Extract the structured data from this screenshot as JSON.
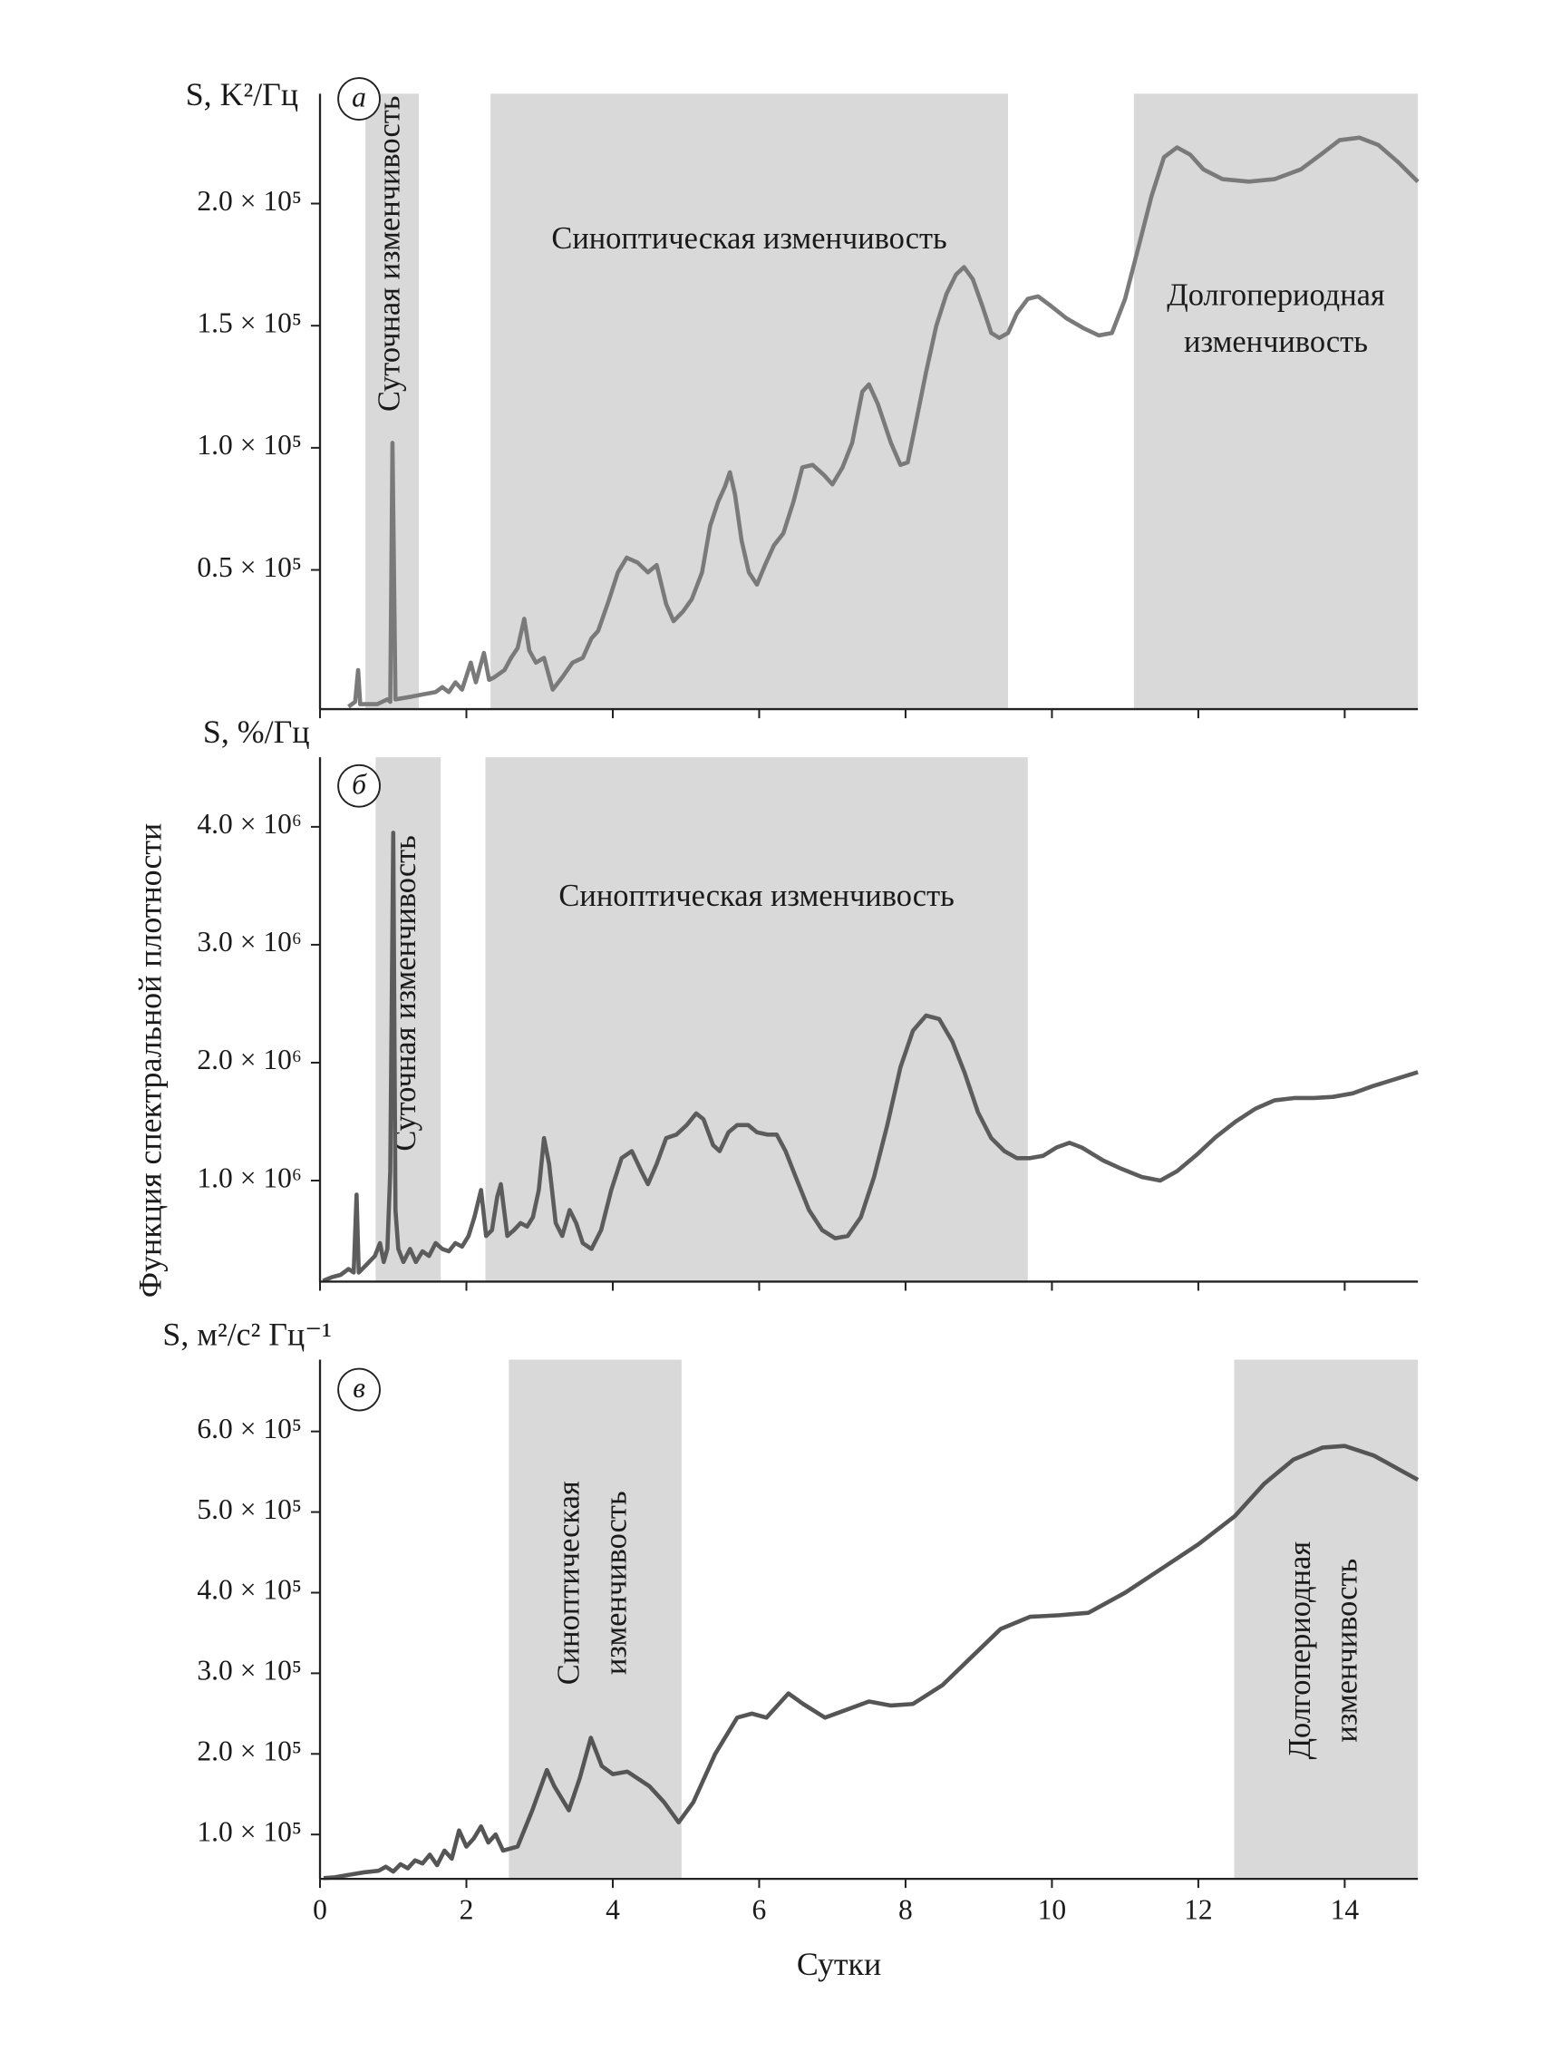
{
  "chart_data": [
    {
      "type": "line",
      "unit_label": "S, K²/Гц",
      "panel_label": "а",
      "color": "#7a7a7a",
      "band_color": "#d9d9d9",
      "xlim": [
        0,
        15
      ],
      "ylim": [
        -7000,
        245000
      ],
      "yticks": [
        {
          "value": 50000,
          "label": "0.5 × 10⁵"
        },
        {
          "value": 100000,
          "label": "1.0 × 10⁵"
        },
        {
          "value": 150000,
          "label": "1.5 × 10⁵"
        },
        {
          "value": 200000,
          "label": "2.0 × 10⁵"
        }
      ],
      "bands": [
        {
          "x0": 0.62,
          "x1": 1.35,
          "label": [
            "Суточная изменчивость"
          ],
          "vertical": true
        },
        {
          "x0": 2.33,
          "x1": 9.4,
          "label": [
            "Синоптическая изменчивость"
          ],
          "vertical": false
        },
        {
          "x0": 11.12,
          "x1": 15,
          "label": [
            "Долгопериодная",
            "изменчивость"
          ],
          "vertical": false
        }
      ],
      "x": [
        0.39,
        0.48,
        0.52,
        0.55,
        0.78,
        0.92,
        0.96,
        0.99,
        1.03,
        1.23,
        1.4,
        1.58,
        1.67,
        1.76,
        1.85,
        1.94,
        2.06,
        2.13,
        2.24,
        2.31,
        2.38,
        2.52,
        2.61,
        2.7,
        2.79,
        2.86,
        2.95,
        3.06,
        3.18,
        3.31,
        3.45,
        3.59,
        3.71,
        3.8,
        3.94,
        4.07,
        4.19,
        4.34,
        4.48,
        4.6,
        4.73,
        4.83,
        4.96,
        5.08,
        5.22,
        5.33,
        5.44,
        5.53,
        5.6,
        5.67,
        5.76,
        5.86,
        5.97,
        6.08,
        6.2,
        6.33,
        6.47,
        6.59,
        6.73,
        6.88,
        7.0,
        7.14,
        7.27,
        7.41,
        7.5,
        7.62,
        7.8,
        7.93,
        8.03,
        8.16,
        8.28,
        8.42,
        8.56,
        8.69,
        8.8,
        8.92,
        9.05,
        9.17,
        9.28,
        9.4,
        9.52,
        9.67,
        9.81,
        9.99,
        10.2,
        10.43,
        10.64,
        10.82,
        11.0,
        11.18,
        11.36,
        11.53,
        11.71,
        11.89,
        12.07,
        12.33,
        12.69,
        13.04,
        13.4,
        13.67,
        13.93,
        14.2,
        14.46,
        14.73,
        15.0
      ],
      "values": [
        -6000,
        -4000,
        9000,
        -5000,
        -5000,
        -3000,
        -4000,
        102000,
        -3000,
        -2000,
        -1000,
        0,
        2000,
        0,
        4000,
        1000,
        12000,
        4000,
        16000,
        5000,
        6000,
        9000,
        14000,
        18000,
        30000,
        17000,
        12000,
        14000,
        1000,
        6000,
        12000,
        14000,
        22000,
        25000,
        37000,
        49000,
        55000,
        53000,
        49000,
        52000,
        36000,
        29000,
        33000,
        38000,
        49000,
        68000,
        78000,
        84000,
        90000,
        81000,
        62000,
        49000,
        44000,
        52000,
        60000,
        65000,
        78000,
        92000,
        93000,
        89000,
        85000,
        92000,
        102000,
        123000,
        126000,
        118000,
        102000,
        93000,
        94000,
        113000,
        131000,
        150000,
        163000,
        171000,
        174000,
        169000,
        158000,
        147000,
        145000,
        147000,
        155000,
        161000,
        162000,
        158000,
        153000,
        149000,
        146000,
        147000,
        161000,
        182000,
        203000,
        219000,
        223000,
        220000,
        214000,
        210000,
        209000,
        210000,
        214000,
        220000,
        226000,
        227000,
        224000,
        217000,
        209000
      ]
    },
    {
      "type": "line",
      "unit_label": "S, %/Гц",
      "panel_label": "б",
      "ylabel": "Функция спектральной плотности",
      "color": "#5c5c5c",
      "band_color": "#d9d9d9",
      "xlim": [
        0,
        15
      ],
      "ylim": [
        143000,
        4590000
      ],
      "yticks": [
        {
          "value": 1000000,
          "label": "1.0 × 10⁶"
        },
        {
          "value": 2000000,
          "label": "2.0 × 10⁶"
        },
        {
          "value": 3000000,
          "label": "3.0 × 10⁶"
        },
        {
          "value": 4000000,
          "label": "4.0 × 10⁶"
        }
      ],
      "bands": [
        {
          "x0": 0.76,
          "x1": 1.65,
          "label": [
            "Суточная изменчивость"
          ],
          "vertical": true
        },
        {
          "x0": 2.26,
          "x1": 9.67,
          "label": [
            "Синоптическая изменчивость"
          ],
          "vertical": false
        }
      ],
      "x": [
        0.04,
        0.16,
        0.28,
        0.39,
        0.46,
        0.5,
        0.53,
        0.64,
        0.75,
        0.82,
        0.87,
        0.92,
        0.96,
        1.0,
        1.03,
        1.07,
        1.14,
        1.23,
        1.31,
        1.4,
        1.49,
        1.58,
        1.67,
        1.76,
        1.85,
        1.94,
        2.03,
        2.11,
        2.2,
        2.27,
        2.35,
        2.42,
        2.47,
        2.56,
        2.65,
        2.74,
        2.83,
        2.91,
        2.99,
        3.06,
        3.13,
        3.22,
        3.31,
        3.41,
        3.5,
        3.59,
        3.71,
        3.84,
        3.98,
        4.12,
        4.26,
        4.39,
        4.48,
        4.6,
        4.73,
        4.87,
        5.01,
        5.14,
        5.24,
        5.37,
        5.46,
        5.58,
        5.7,
        5.85,
        5.97,
        6.11,
        6.24,
        6.36,
        6.5,
        6.68,
        6.86,
        7.04,
        7.21,
        7.39,
        7.57,
        7.75,
        7.93,
        8.1,
        8.28,
        8.46,
        8.64,
        8.81,
        8.99,
        9.17,
        9.35,
        9.52,
        9.7,
        9.88,
        10.06,
        10.24,
        10.41,
        10.7,
        10.95,
        11.23,
        11.48,
        11.71,
        11.98,
        12.24,
        12.51,
        12.78,
        13.04,
        13.31,
        13.58,
        13.84,
        14.11,
        14.38,
        14.64,
        15.0
      ],
      "values": [
        150000,
        180000,
        200000,
        250000,
        220000,
        880000,
        220000,
        290000,
        360000,
        470000,
        310000,
        420000,
        1080000,
        3950000,
        750000,
        420000,
        310000,
        420000,
        310000,
        400000,
        360000,
        470000,
        420000,
        400000,
        470000,
        440000,
        530000,
        690000,
        920000,
        530000,
        580000,
        860000,
        970000,
        530000,
        580000,
        640000,
        610000,
        690000,
        920000,
        1360000,
        1140000,
        640000,
        530000,
        750000,
        640000,
        470000,
        420000,
        580000,
        920000,
        1190000,
        1250000,
        1080000,
        970000,
        1140000,
        1360000,
        1390000,
        1470000,
        1570000,
        1520000,
        1300000,
        1250000,
        1410000,
        1470000,
        1470000,
        1410000,
        1390000,
        1390000,
        1250000,
        1030000,
        750000,
        580000,
        510000,
        530000,
        690000,
        1030000,
        1470000,
        1960000,
        2270000,
        2400000,
        2370000,
        2180000,
        1910000,
        1580000,
        1360000,
        1250000,
        1190000,
        1190000,
        1210000,
        1280000,
        1320000,
        1280000,
        1170000,
        1100000,
        1030000,
        1000000,
        1080000,
        1220000,
        1370000,
        1500000,
        1610000,
        1680000,
        1700000,
        1700000,
        1710000,
        1740000,
        1800000,
        1850000,
        1920000
      ]
    },
    {
      "type": "line",
      "unit_label": "S, м²/с² Гц⁻¹",
      "panel_label": "в",
      "xlabel": "Сутки",
      "color": "#555555",
      "band_color": "#d9d9d9",
      "xlim": [
        0,
        15
      ],
      "ylim": [
        45000,
        689000
      ],
      "xticks": [
        0,
        2,
        4,
        6,
        8,
        10,
        12,
        14
      ],
      "yticks": [
        {
          "value": 100000,
          "label": "1.0 × 10⁵"
        },
        {
          "value": 200000,
          "label": "2.0 × 10⁵"
        },
        {
          "value": 300000,
          "label": "3.0 × 10⁵"
        },
        {
          "value": 400000,
          "label": "4.0 × 10⁵"
        },
        {
          "value": 500000,
          "label": "5.0 × 10⁵"
        },
        {
          "value": 600000,
          "label": "6.0 × 10⁵"
        }
      ],
      "bands": [
        {
          "x0": 2.58,
          "x1": 4.94,
          "label": [
            "Синоптическая",
            "изменчивость"
          ],
          "vertical": true
        },
        {
          "x0": 12.49,
          "x1": 15,
          "label": [
            "Долгопериодная",
            "изменчивость"
          ],
          "vertical": true
        }
      ],
      "x": [
        0.05,
        0.2,
        0.4,
        0.6,
        0.8,
        0.9,
        1.0,
        1.1,
        1.2,
        1.3,
        1.4,
        1.5,
        1.6,
        1.7,
        1.8,
        1.9,
        2.0,
        2.1,
        2.2,
        2.3,
        2.4,
        2.5,
        2.7,
        2.9,
        3.1,
        3.2,
        3.4,
        3.55,
        3.7,
        3.85,
        4.0,
        4.2,
        4.5,
        4.7,
        4.9,
        5.1,
        5.4,
        5.7,
        5.9,
        6.1,
        6.4,
        6.6,
        6.9,
        7.2,
        7.5,
        7.8,
        8.1,
        8.5,
        8.9,
        9.3,
        9.7,
        10.1,
        10.5,
        11.0,
        11.5,
        12.0,
        12.5,
        12.9,
        13.3,
        13.7,
        14.0,
        14.4,
        14.8,
        15.0
      ],
      "values": [
        46000,
        47000,
        50000,
        53000,
        55000,
        60000,
        54000,
        63000,
        58000,
        68000,
        64000,
        75000,
        62000,
        80000,
        70000,
        105000,
        85000,
        95000,
        110000,
        90000,
        100000,
        80000,
        85000,
        130000,
        180000,
        160000,
        130000,
        170000,
        220000,
        185000,
        175000,
        178000,
        160000,
        140000,
        115000,
        140000,
        200000,
        245000,
        250000,
        245000,
        275000,
        262000,
        245000,
        255000,
        265000,
        260000,
        262000,
        285000,
        320000,
        355000,
        370000,
        372000,
        375000,
        400000,
        430000,
        460000,
        495000,
        535000,
        565000,
        580000,
        582000,
        570000,
        550000,
        540000
      ]
    }
  ]
}
